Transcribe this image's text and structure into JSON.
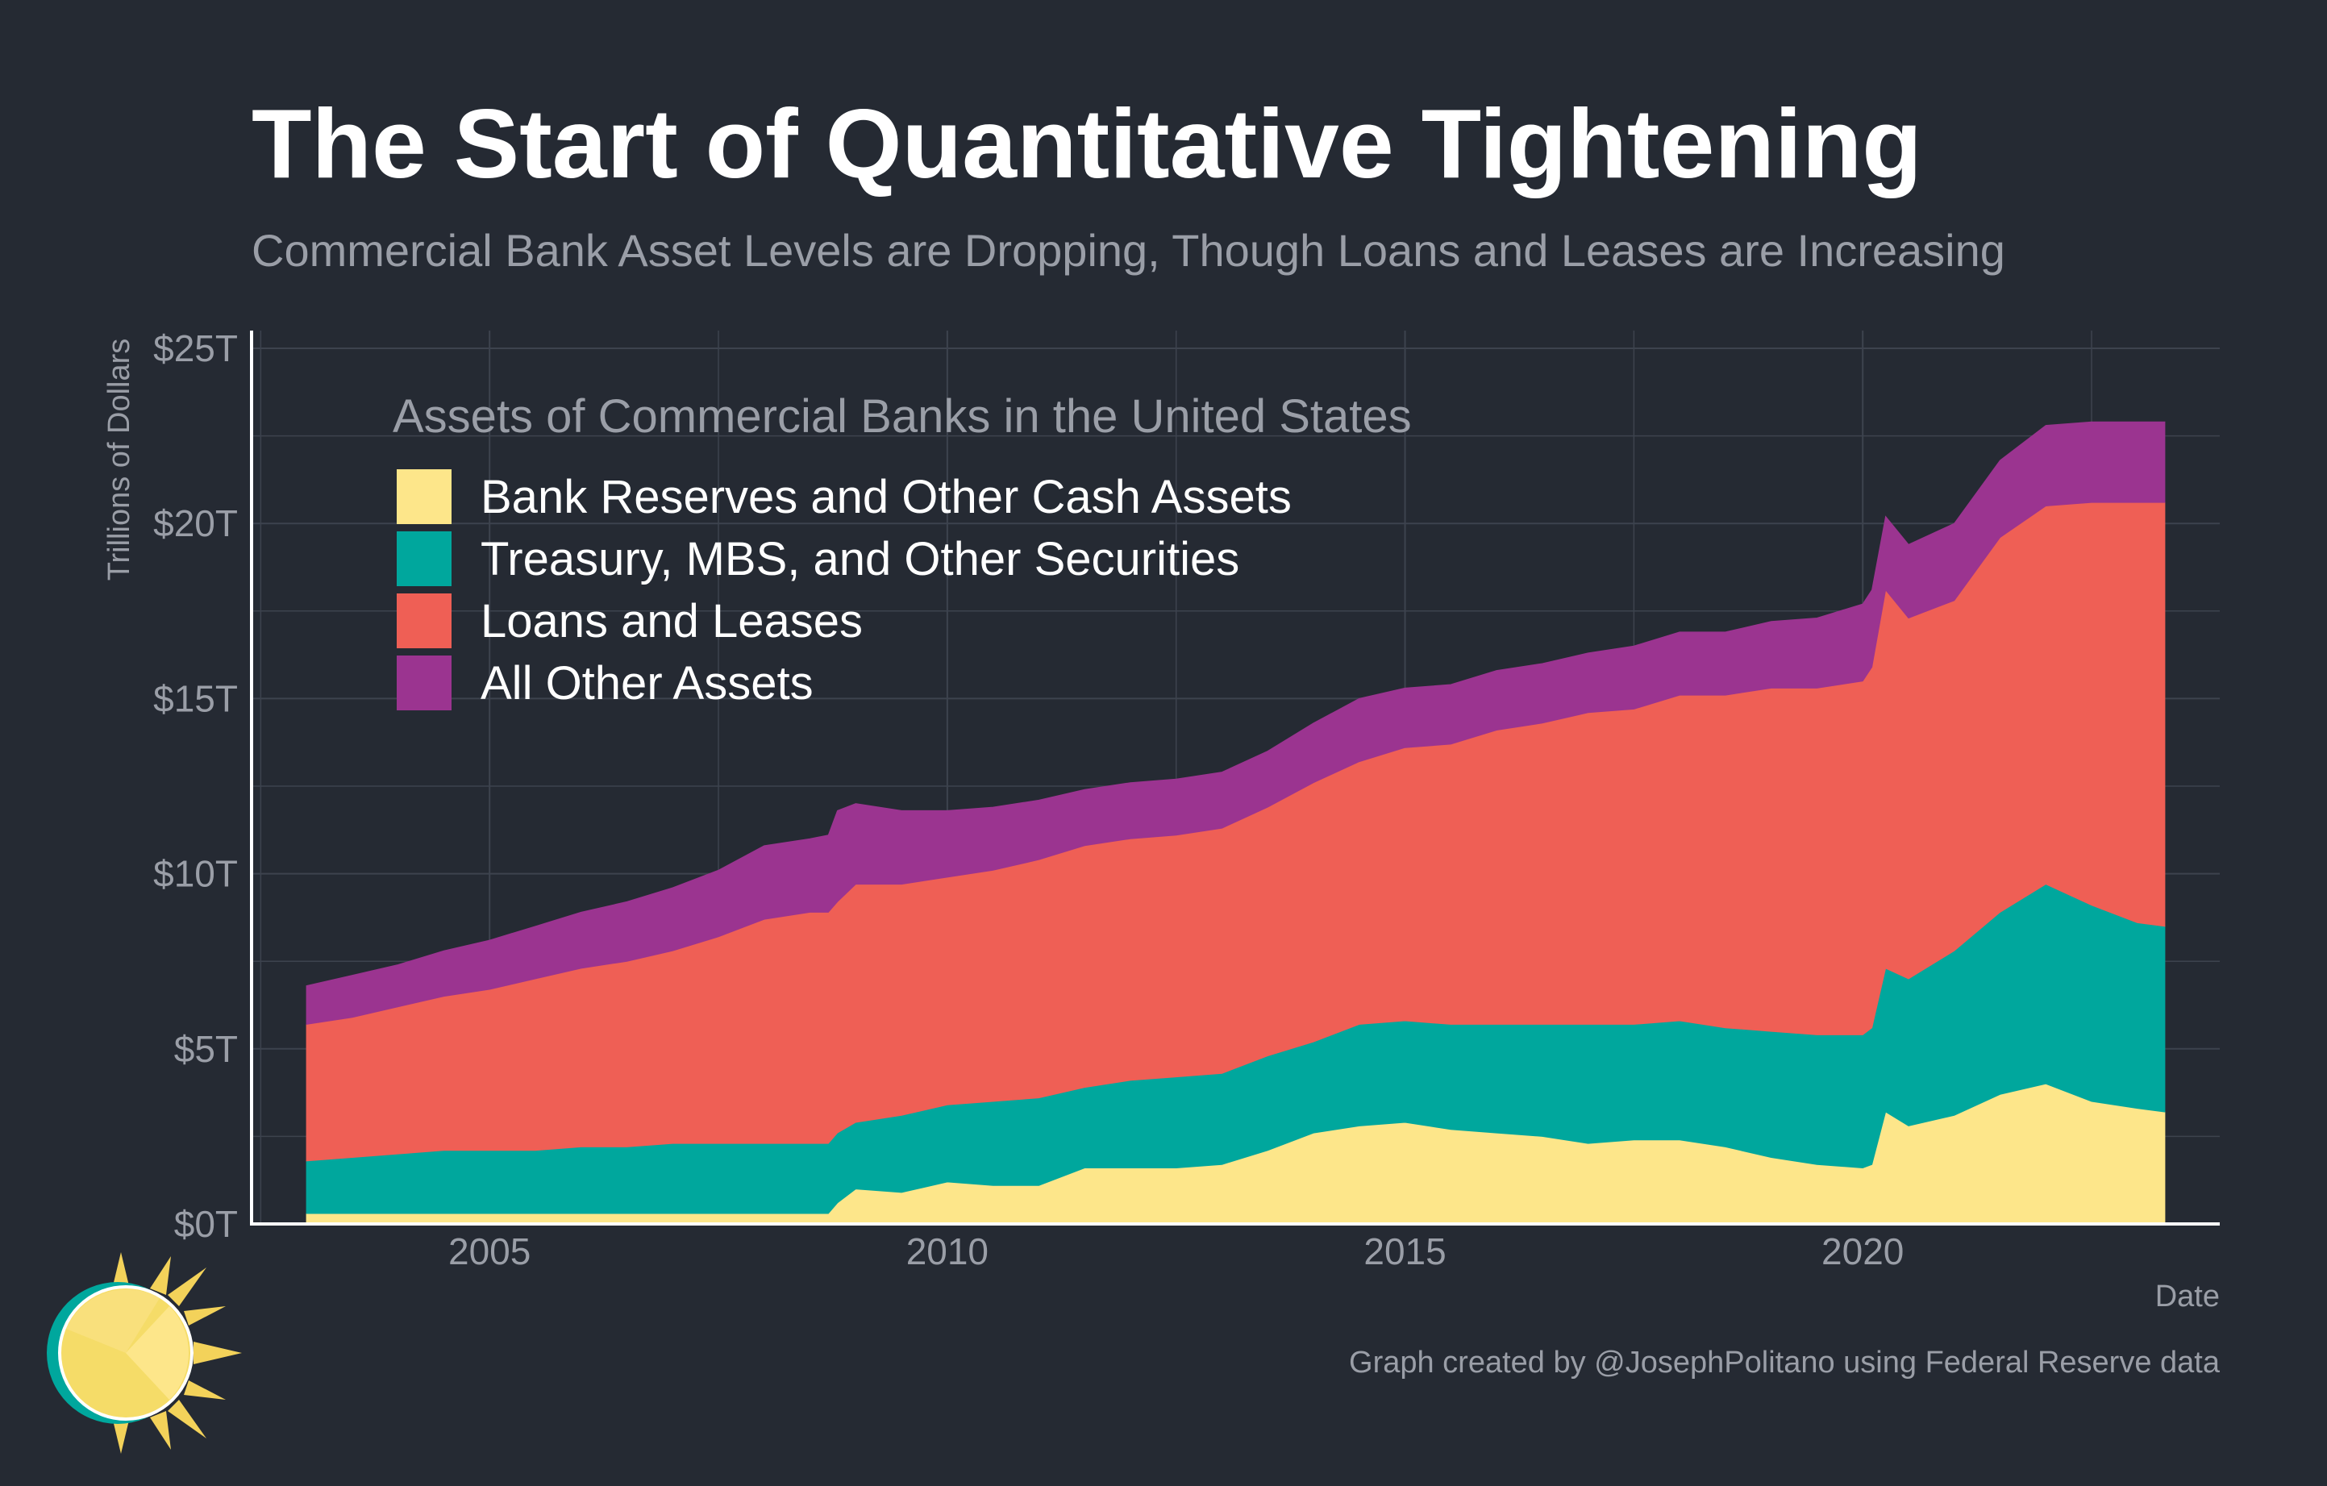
{
  "chart_data": {
    "type": "area",
    "stacked": true,
    "title": "The Start of Quantitative Tightening",
    "subtitle": "Commercial Bank Asset Levels are Dropping, Though Loans and Leases are Increasing",
    "xlabel": "Date",
    "ylabel": "Trillions of Dollars",
    "xlim": [
      2002.4,
      2023.9
    ],
    "ylim": [
      0,
      25
    ],
    "x_ticks": [
      {
        "value": 2005,
        "label": "2005"
      },
      {
        "value": 2010,
        "label": "2010"
      },
      {
        "value": 2015,
        "label": "2015"
      },
      {
        "value": 2020,
        "label": "2020"
      }
    ],
    "y_ticks": [
      {
        "value": 0,
        "label": "$0T"
      },
      {
        "value": 5,
        "label": "$5T"
      },
      {
        "value": 10,
        "label": "$10T"
      },
      {
        "value": 15,
        "label": "$15T"
      },
      {
        "value": 20,
        "label": "$20T"
      },
      {
        "value": 25,
        "label": "$25T"
      }
    ],
    "grid": true,
    "legend": {
      "title": "Assets of Commercial Banks in the United States",
      "placement": "top-left"
    },
    "x": [
      2003.0,
      2003.5,
      2004.0,
      2004.5,
      2005.0,
      2005.5,
      2006.0,
      2006.5,
      2007.0,
      2007.5,
      2008.0,
      2008.5,
      2008.7,
      2008.8,
      2009.0,
      2009.5,
      2010.0,
      2010.5,
      2011.0,
      2011.5,
      2012.0,
      2012.5,
      2013.0,
      2013.5,
      2014.0,
      2014.5,
      2015.0,
      2015.5,
      2016.0,
      2016.5,
      2017.0,
      2017.5,
      2018.0,
      2018.5,
      2019.0,
      2019.5,
      2020.0,
      2020.1,
      2020.25,
      2020.5,
      2021.0,
      2021.5,
      2022.0,
      2022.5,
      2023.0,
      2023.3
    ],
    "series": [
      {
        "name": "Bank Reserves and Other Cash Assets",
        "color": "#fde68a",
        "values": [
          0.3,
          0.3,
          0.3,
          0.3,
          0.3,
          0.3,
          0.3,
          0.3,
          0.3,
          0.3,
          0.3,
          0.3,
          0.3,
          0.6,
          1.0,
          0.9,
          1.2,
          1.1,
          1.1,
          1.6,
          1.6,
          1.6,
          1.7,
          2.1,
          2.6,
          2.8,
          2.9,
          2.7,
          2.6,
          2.5,
          2.3,
          2.4,
          2.4,
          2.2,
          1.9,
          1.7,
          1.6,
          1.7,
          3.2,
          2.8,
          3.1,
          3.7,
          4.0,
          3.5,
          3.3,
          3.2
        ]
      },
      {
        "name": "Treasury, MBS, and Other Securities",
        "color": "#00a79d",
        "values": [
          1.5,
          1.6,
          1.7,
          1.8,
          1.8,
          1.8,
          1.9,
          1.9,
          2.0,
          2.0,
          2.0,
          2.0,
          2.0,
          2.0,
          1.9,
          2.2,
          2.2,
          2.4,
          2.5,
          2.3,
          2.5,
          2.6,
          2.6,
          2.7,
          2.6,
          2.9,
          2.9,
          3.0,
          3.1,
          3.2,
          3.4,
          3.3,
          3.4,
          3.4,
          3.6,
          3.7,
          3.8,
          3.9,
          4.1,
          4.2,
          4.7,
          5.2,
          5.7,
          5.6,
          5.3,
          5.3
        ]
      },
      {
        "name": "Loans and Leases",
        "color": "#ef5f55",
        "values": [
          3.9,
          4.0,
          4.2,
          4.4,
          4.6,
          4.9,
          5.1,
          5.3,
          5.5,
          5.9,
          6.4,
          6.6,
          6.6,
          6.6,
          6.8,
          6.6,
          6.5,
          6.6,
          6.8,
          6.9,
          6.9,
          6.9,
          7.0,
          7.1,
          7.4,
          7.5,
          7.8,
          8.0,
          8.4,
          8.6,
          8.9,
          9.0,
          9.3,
          9.5,
          9.8,
          9.9,
          10.1,
          10.3,
          10.8,
          10.3,
          10.0,
          10.7,
          10.8,
          11.5,
          12.0,
          12.1
        ]
      },
      {
        "name": "All Other Assets",
        "color": "#9b3490",
        "values": [
          1.1,
          1.2,
          1.2,
          1.3,
          1.4,
          1.5,
          1.6,
          1.7,
          1.8,
          1.9,
          2.1,
          2.1,
          2.2,
          2.6,
          2.3,
          2.1,
          1.9,
          1.8,
          1.7,
          1.6,
          1.6,
          1.6,
          1.6,
          1.6,
          1.7,
          1.8,
          1.7,
          1.7,
          1.7,
          1.7,
          1.7,
          1.8,
          1.8,
          1.8,
          1.9,
          2.0,
          2.2,
          2.2,
          2.1,
          2.1,
          2.2,
          2.2,
          2.3,
          2.3,
          2.3,
          2.3
        ]
      }
    ]
  },
  "caption": "Graph created by @JosephPolitano using Federal Reserve data",
  "colors": {
    "background": "#252a33",
    "grid": "#3d434e",
    "axis_text": "#9a9ea7",
    "title": "#ffffff",
    "subtitle": "#9a9ea7"
  },
  "logo": {
    "icon": "sun-logo-icon"
  }
}
